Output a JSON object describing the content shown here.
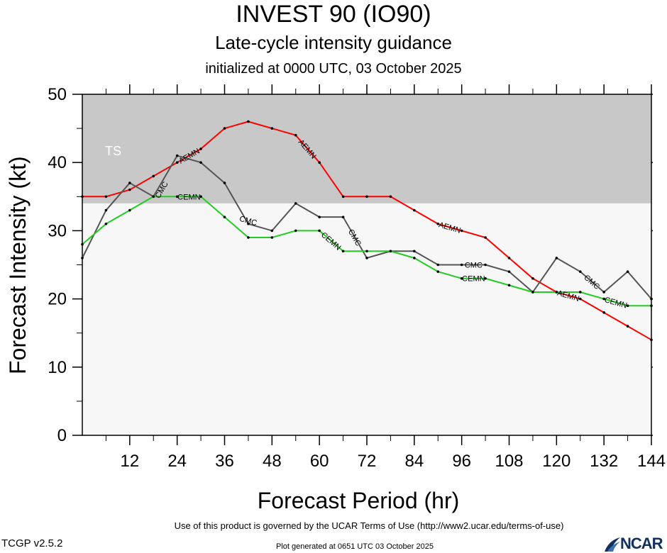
{
  "header": {
    "title": "INVEST 90 (IO90)",
    "subtitle": "Late-cycle intensity guidance",
    "initialized": "initialized at 0000 UTC, 03 October 2025"
  },
  "footer": {
    "terms": "Use of this product is governed by the UCAR Terms of Use (http://www2.ucar.edu/terms-of-use)",
    "generated": "Plot generated at 0651 UTC   03 October 2025",
    "version": "TCGP v2.5.2",
    "logo": "NCAR"
  },
  "chart_data": {
    "type": "line",
    "xlabel": "Forecast Period (hr)",
    "ylabel": "Forecast Intensity (kt)",
    "xlim": [
      0,
      144
    ],
    "ylim": [
      0,
      50
    ],
    "xticks": [
      12,
      24,
      36,
      48,
      60,
      72,
      84,
      96,
      108,
      120,
      132,
      144
    ],
    "yticks": [
      0,
      10,
      20,
      30,
      40,
      50
    ],
    "regions": [
      {
        "label": "TS",
        "from": 34,
        "to": 50,
        "color": "#c8c8c8"
      },
      {
        "label": "",
        "from": 0,
        "to": 34,
        "color": "#f7f7f7"
      }
    ],
    "series": [
      {
        "name": "AEMN",
        "color": "#ff0000",
        "x": [
          0,
          6,
          12,
          18,
          24,
          30,
          36,
          42,
          48,
          54,
          60,
          66,
          72,
          78,
          84,
          90,
          96,
          102,
          108,
          114,
          120,
          126,
          132,
          138,
          144
        ],
        "y": [
          35,
          35,
          36,
          38,
          40,
          42,
          45,
          46,
          45,
          44,
          40,
          35,
          35,
          35,
          33,
          31,
          30,
          29,
          26,
          23,
          21,
          20,
          18,
          16,
          14
        ]
      },
      {
        "name": "CMC",
        "color": "#555555",
        "x": [
          0,
          6,
          12,
          18,
          24,
          30,
          36,
          42,
          48,
          54,
          60,
          66,
          72,
          78,
          84,
          90,
          96,
          102,
          108,
          114,
          120,
          126,
          132,
          138,
          144
        ],
        "y": [
          26,
          33,
          37,
          35,
          41,
          40,
          37,
          31,
          30,
          34,
          32,
          32,
          26,
          27,
          27,
          25,
          25,
          25,
          24,
          21,
          26,
          24,
          21,
          24,
          20
        ]
      },
      {
        "name": "CEMN",
        "color": "#22cc22",
        "x": [
          0,
          6,
          12,
          18,
          24,
          30,
          36,
          42,
          48,
          54,
          60,
          66,
          72,
          78,
          84,
          90,
          96,
          102,
          108,
          114,
          120,
          126,
          132,
          138,
          144
        ],
        "y": [
          28,
          31,
          33,
          35,
          35,
          35,
          32,
          29,
          29,
          30,
          30,
          27,
          27,
          27,
          26,
          24,
          23,
          23,
          22,
          21,
          21,
          21,
          20,
          19,
          19
        ]
      }
    ],
    "line_labels": [
      {
        "series": "AEMN",
        "x": 27,
        "y": 41,
        "text": "AEMN"
      },
      {
        "series": "AEMN",
        "x": 57,
        "y": 42,
        "text": "AEMN"
      },
      {
        "series": "AEMN",
        "x": 93,
        "y": 30.5,
        "text": "AEMN"
      },
      {
        "series": "AEMN",
        "x": 123,
        "y": 20.5,
        "text": "AEMN"
      },
      {
        "series": "CMC",
        "x": 20,
        "y": 36,
        "text": "CMC"
      },
      {
        "series": "CMC",
        "x": 42,
        "y": 31.5,
        "text": "CMC"
      },
      {
        "series": "CMC",
        "x": 69,
        "y": 29,
        "text": "CMC"
      },
      {
        "series": "CMC",
        "x": 99,
        "y": 25,
        "text": "CMC"
      },
      {
        "series": "CMC",
        "x": 129,
        "y": 22.5,
        "text": "CMC"
      },
      {
        "series": "CEMN",
        "x": 27,
        "y": 35,
        "text": "CEMN"
      },
      {
        "series": "CEMN",
        "x": 63,
        "y": 28.5,
        "text": "CEMN"
      },
      {
        "series": "CEMN",
        "x": 99,
        "y": 23,
        "text": "CEMN"
      },
      {
        "series": "CEMN",
        "x": 135,
        "y": 19.5,
        "text": "CEMN"
      }
    ]
  }
}
